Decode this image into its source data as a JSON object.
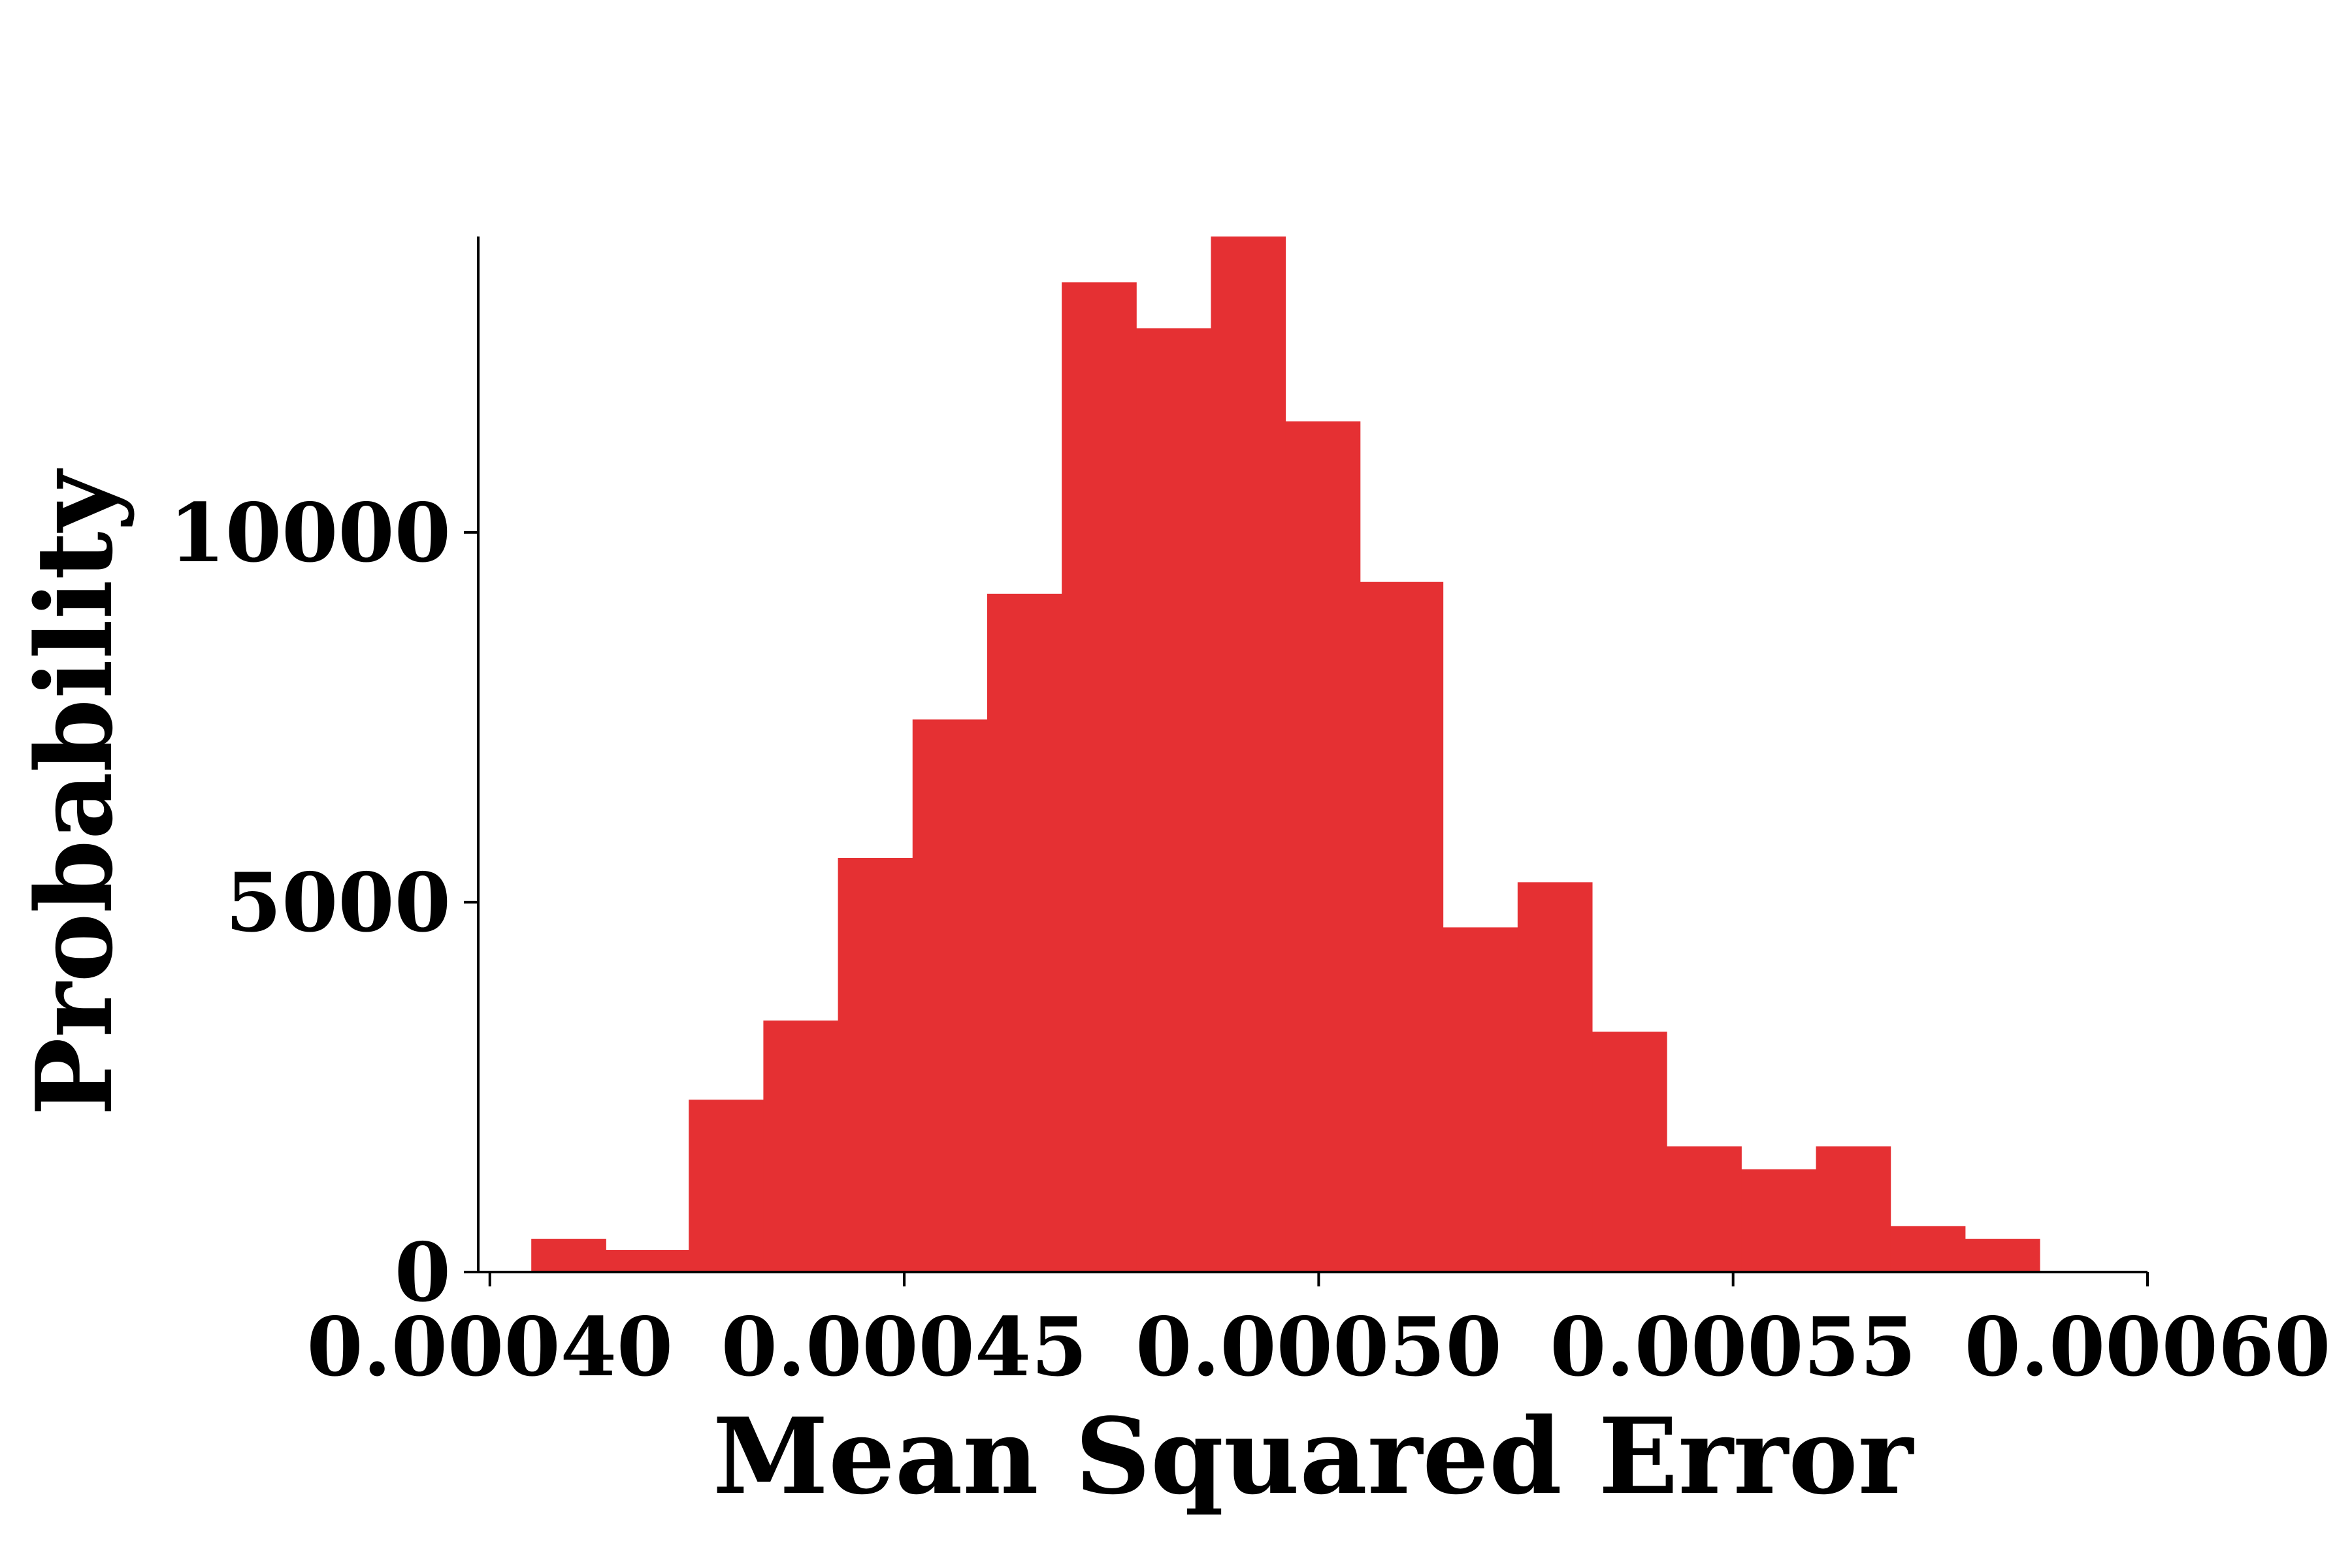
{
  "chart_data": {
    "type": "bar",
    "title": "",
    "xlabel": "Mean Squared Error",
    "ylabel": "Probability",
    "bar_color": "#e53033",
    "bins": [
      {
        "x0": 0.000405,
        "x1": 0.000414,
        "value": 450
      },
      {
        "x0": 0.000414,
        "x1": 0.000424,
        "value": 300
      },
      {
        "x0": 0.000424,
        "x1": 0.000433,
        "value": 2330
      },
      {
        "x0": 0.000433,
        "x1": 0.000442,
        "value": 3400
      },
      {
        "x0": 0.000442,
        "x1": 0.000451,
        "value": 5600
      },
      {
        "x0": 0.000451,
        "x1": 0.00046,
        "value": 7470
      },
      {
        "x0": 0.00046,
        "x1": 0.000469,
        "value": 9170
      },
      {
        "x0": 0.000469,
        "x1": 0.000478,
        "value": 13380
      },
      {
        "x0": 0.000478,
        "x1": 0.000487,
        "value": 12760
      },
      {
        "x0": 0.000487,
        "x1": 0.000496,
        "value": 14000
      },
      {
        "x0": 0.000496,
        "x1": 0.000505,
        "value": 11500
      },
      {
        "x0": 0.000505,
        "x1": 0.000515,
        "value": 9330
      },
      {
        "x0": 0.000515,
        "x1": 0.000524,
        "value": 4660
      },
      {
        "x0": 0.000524,
        "x1": 0.000533,
        "value": 5270
      },
      {
        "x0": 0.000533,
        "x1": 0.000542,
        "value": 3250
      },
      {
        "x0": 0.000542,
        "x1": 0.000551,
        "value": 1700
      },
      {
        "x0": 0.000551,
        "x1": 0.00056,
        "value": 1390
      },
      {
        "x0": 0.00056,
        "x1": 0.000569,
        "value": 1700
      },
      {
        "x0": 0.000569,
        "x1": 0.000578,
        "value": 620
      },
      {
        "x0": 0.000578,
        "x1": 0.000587,
        "value": 450
      }
    ],
    "xlim": [
      0.0003986,
      0.0006
    ],
    "ylim": [
      0,
      14000
    ],
    "x_ticks": [
      {
        "value": 0.0004,
        "label": "0.00040"
      },
      {
        "value": 0.00045,
        "label": "0.00045"
      },
      {
        "value": 0.0005,
        "label": "0.00050"
      },
      {
        "value": 0.00055,
        "label": "0.00055"
      },
      {
        "value": 0.0006,
        "label": "0.00060"
      }
    ],
    "y_ticks": [
      {
        "value": 0,
        "label": "0"
      },
      {
        "value": 5000,
        "label": "5000"
      },
      {
        "value": 10000,
        "label": "10000"
      }
    ],
    "grid": false,
    "legend": "none"
  }
}
